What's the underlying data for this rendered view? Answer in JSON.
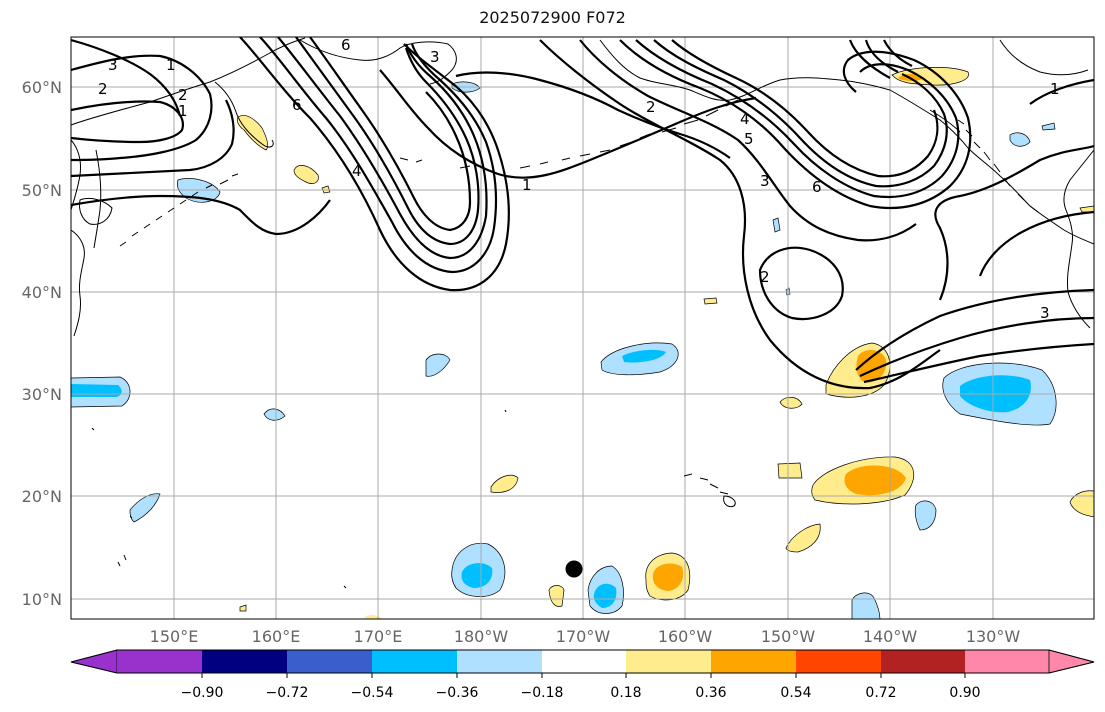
{
  "title": "2025072900 F072",
  "map": {
    "lat_labels": [
      "60°N",
      "50°N",
      "40°N",
      "30°N",
      "20°N",
      "10°N"
    ],
    "lon_labels": [
      "150°E",
      "160°E",
      "170°E",
      "180°W",
      "170°W",
      "160°W",
      "150°W",
      "140°W",
      "130°W"
    ],
    "contour_labels": [
      "6",
      "3",
      "4",
      "2",
      "1",
      "2",
      "1",
      "6",
      "2",
      "5",
      "3",
      "4",
      "6",
      "1",
      "2",
      "3",
      "3",
      "1"
    ],
    "colors": {
      "land_outline": "#000000",
      "grid": "#a8a8a8",
      "contour": "#000000",
      "pos_light": "#ffec8c",
      "pos_mid": "#ffa500",
      "neg_light": "#b0e0ff",
      "neg_mid": "#00bfff"
    }
  },
  "colorbar": {
    "tick_labels": [
      "−0.90",
      "−0.72",
      "−0.54",
      "−0.36",
      "−0.18",
      "0.18",
      "0.36",
      "0.54",
      "0.72",
      "0.90"
    ],
    "colors": [
      "#9932cc",
      "#000080",
      "#3a5fcd",
      "#00bfff",
      "#b0e0ff",
      "#ffffff",
      "#ffec8c",
      "#ffa500",
      "#ff4500",
      "#b22222",
      "#ff88aa"
    ]
  }
}
